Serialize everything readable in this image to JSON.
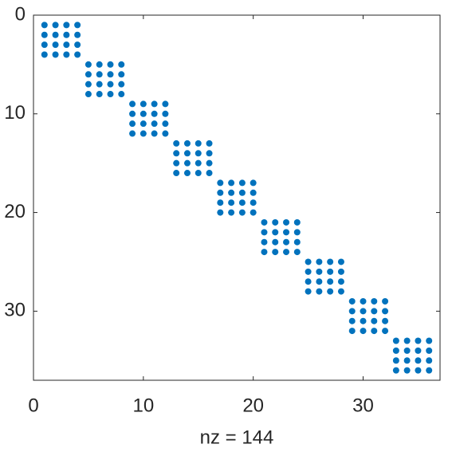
{
  "chart_data": {
    "type": "spy",
    "xlabel": "nz = 144",
    "color": "#0072bd",
    "xlim": [
      0,
      37
    ],
    "ylim": [
      0,
      37
    ],
    "xticks": [
      0,
      10,
      20,
      30
    ],
    "yticks": [
      0,
      10,
      20,
      30
    ],
    "y_reversed": true,
    "x": [
      1,
      2,
      3,
      4,
      1,
      2,
      3,
      4,
      1,
      2,
      3,
      4,
      1,
      2,
      3,
      4,
      5,
      6,
      7,
      8,
      5,
      6,
      7,
      8,
      5,
      6,
      7,
      8,
      5,
      6,
      7,
      8,
      9,
      10,
      11,
      12,
      9,
      10,
      11,
      12,
      9,
      10,
      11,
      12,
      9,
      10,
      11,
      12,
      13,
      14,
      15,
      16,
      13,
      14,
      15,
      16,
      13,
      14,
      15,
      16,
      13,
      14,
      15,
      16,
      17,
      18,
      19,
      20,
      17,
      18,
      19,
      20,
      17,
      18,
      19,
      20,
      17,
      18,
      19,
      20,
      21,
      22,
      23,
      24,
      21,
      22,
      23,
      24,
      21,
      22,
      23,
      24,
      21,
      22,
      23,
      24,
      25,
      26,
      27,
      28,
      25,
      26,
      27,
      28,
      25,
      26,
      27,
      28,
      25,
      26,
      27,
      28,
      29,
      30,
      31,
      32,
      29,
      30,
      31,
      32,
      29,
      30,
      31,
      32,
      29,
      30,
      31,
      32,
      33,
      34,
      35,
      36,
      33,
      34,
      35,
      36,
      33,
      34,
      35,
      36,
      33,
      34,
      35,
      36
    ],
    "y": [
      1,
      1,
      1,
      1,
      2,
      2,
      2,
      2,
      3,
      3,
      3,
      3,
      4,
      4,
      4,
      4,
      5,
      5,
      5,
      5,
      6,
      6,
      6,
      6,
      7,
      7,
      7,
      7,
      8,
      8,
      8,
      8,
      9,
      9,
      9,
      9,
      10,
      10,
      10,
      10,
      11,
      11,
      11,
      11,
      12,
      12,
      12,
      12,
      13,
      13,
      13,
      13,
      14,
      14,
      14,
      14,
      15,
      15,
      15,
      15,
      16,
      16,
      16,
      16,
      17,
      17,
      17,
      17,
      18,
      18,
      18,
      18,
      19,
      19,
      19,
      19,
      20,
      20,
      20,
      20,
      21,
      21,
      21,
      21,
      22,
      22,
      22,
      22,
      23,
      23,
      23,
      23,
      24,
      24,
      24,
      24,
      25,
      25,
      25,
      25,
      26,
      26,
      26,
      26,
      27,
      27,
      27,
      27,
      28,
      28,
      28,
      28,
      29,
      29,
      29,
      29,
      30,
      30,
      30,
      30,
      31,
      31,
      31,
      31,
      32,
      32,
      32,
      32,
      33,
      33,
      33,
      33,
      34,
      34,
      34,
      34,
      35,
      35,
      35,
      35,
      36,
      36,
      36,
      36
    ]
  }
}
